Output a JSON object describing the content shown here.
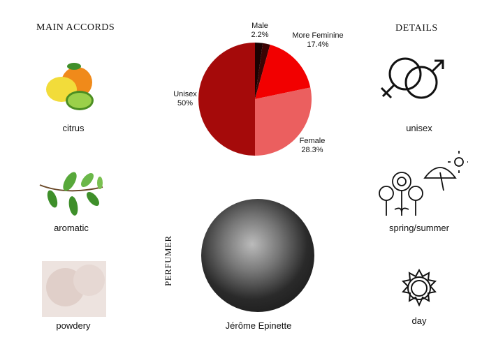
{
  "accords": {
    "title": "Main accords",
    "items": [
      {
        "label": "citrus",
        "icon": "citrus-fruit-image"
      },
      {
        "label": "aromatic",
        "icon": "herb-sprig-image"
      },
      {
        "label": "powdery",
        "icon": "powder-image"
      }
    ]
  },
  "details": {
    "title": "Details",
    "items": [
      {
        "label": "unisex",
        "icon": "gender-symbols-icon"
      },
      {
        "label": "spring/summer",
        "icon": "flowers-umbrella-sun-icon"
      },
      {
        "label": "day",
        "icon": "sun-icon"
      }
    ]
  },
  "perfumer": {
    "title": "Perfumer",
    "name": "Jérôme Epinette"
  },
  "chart_data": {
    "type": "pie",
    "start": "top, clockwise",
    "slices": [
      {
        "label": "Male",
        "value": 2.2,
        "value_label": "2.2%",
        "color": "#1c0202"
      },
      {
        "label": "",
        "value": 2.1,
        "value_label": "",
        "color": "#3c0404"
      },
      {
        "label": "More Feminine",
        "value": 17.4,
        "value_label": "17.4%",
        "color": "#f20000"
      },
      {
        "label": "Female",
        "value": 28.3,
        "value_label": "28.3%",
        "color": "#eb5f5f"
      },
      {
        "label": "Unisex",
        "value": 50,
        "value_label": "50%",
        "color": "#a50a0a"
      }
    ]
  }
}
